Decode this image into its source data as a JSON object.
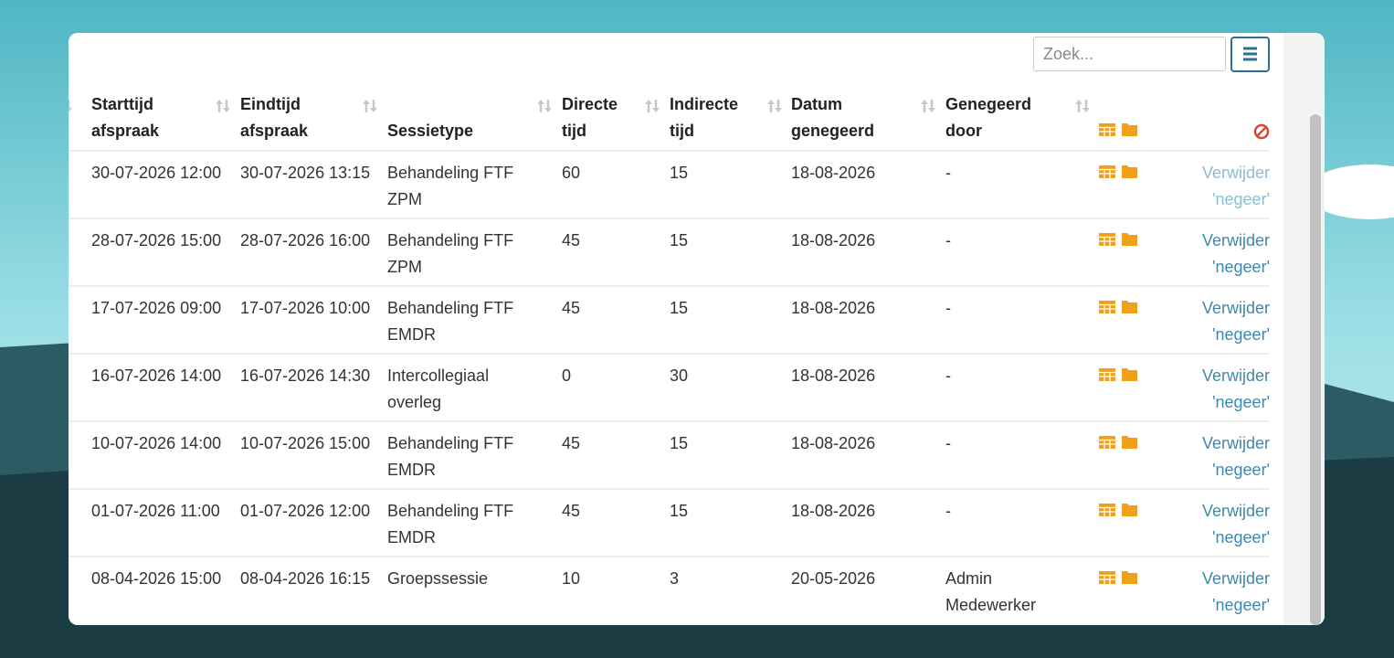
{
  "search": {
    "placeholder": "Zoek..."
  },
  "table": {
    "headers": [
      "Starttijd afspraak",
      "Eindtijd afspraak",
      "Sessietype",
      "Directe tijd",
      "Indirecte tijd",
      "Datum genegeerd",
      "Genegeerd door"
    ],
    "rows": [
      [
        "30-07-2026 12:00",
        "30-07-2026 13:15",
        "Behandeling FTF ZPM",
        60,
        15,
        "18-08-2026",
        "-",
        "Verwijder 'negeer'"
      ],
      [
        "28-07-2026 15:00",
        "28-07-2026 16:00",
        "Behandeling FTF ZPM",
        45,
        15,
        "18-08-2026",
        "-",
        "Verwijder 'negeer'"
      ],
      [
        "17-07-2026 09:00",
        "17-07-2026 10:00",
        "Behandeling FTF EMDR",
        45,
        15,
        "18-08-2026",
        "-",
        "Verwijder 'negeer'"
      ],
      [
        "16-07-2026 14:00",
        "16-07-2026 14:30",
        "Intercollegiaal overleg",
        0,
        30,
        "18-08-2026",
        "-",
        "Verwijder 'negeer'"
      ],
      [
        "10-07-2026 14:00",
        "10-07-2026 15:00",
        "Behandeling FTF EMDR",
        45,
        15,
        "18-08-2026",
        "-",
        "Verwijder 'negeer'"
      ],
      [
        "01-07-2026 11:00",
        "01-07-2026 12:00",
        "Behandeling FTF EMDR",
        45,
        15,
        "18-08-2026",
        "-",
        "Verwijder 'negeer'"
      ],
      [
        "08-04-2026 15:00",
        "08-04-2026 16:15",
        "Groepssessie",
        10,
        3,
        "20-05-2026",
        "Admin Medewerker",
        "Verwijder 'negeer'"
      ]
    ]
  }
}
